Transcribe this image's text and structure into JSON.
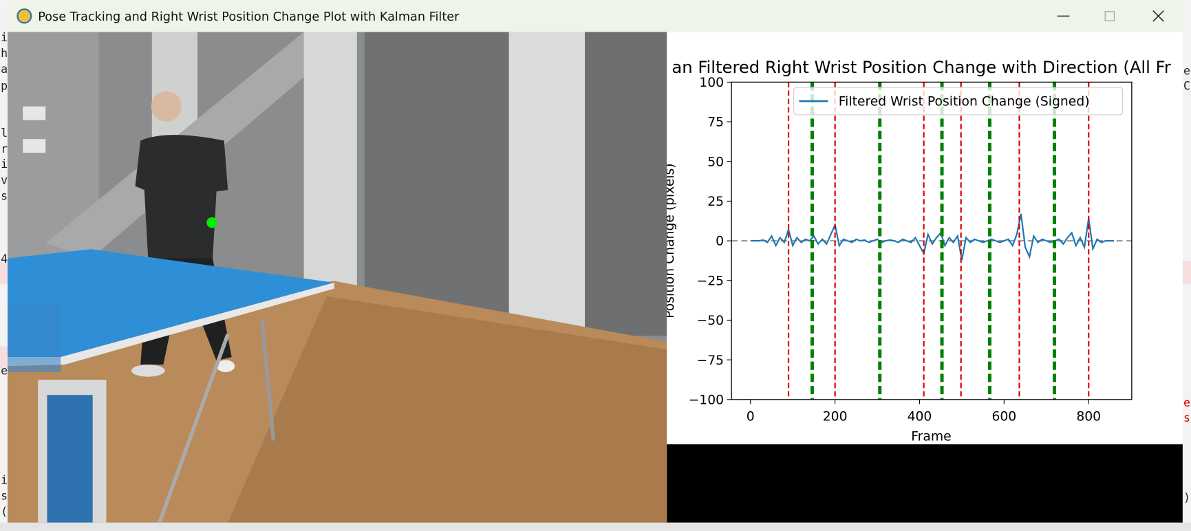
{
  "window": {
    "title": "Pose Tracking and Right Wrist Position Change Plot with Kalman Filter"
  },
  "background_text_left": [
    "i",
    "h",
    "a",
    "p",
    "l",
    "r",
    "i",
    "v",
    "s",
    "4",
    "e",
    "i",
    "s",
    "("
  ],
  "background_text_right": [
    "e",
    "C",
    "e",
    "s",
    ")"
  ],
  "chart_data": {
    "type": "line",
    "title": "an Filtered Right Wrist Position Change with Direction (All Fr",
    "xlabel": "Frame",
    "ylabel": "Position Change (pixels)",
    "xlim": [
      -45,
      902
    ],
    "ylim": [
      -100,
      100
    ],
    "xticks": [
      0,
      200,
      400,
      600,
      800
    ],
    "yticks": [
      {
        "value": -100,
        "label": "−100"
      },
      {
        "value": -75,
        "label": "−75"
      },
      {
        "value": -50,
        "label": "−50"
      },
      {
        "value": -25,
        "label": "−25"
      },
      0,
      25,
      50,
      75,
      100
    ],
    "x": [
      0,
      10,
      20,
      30,
      40,
      50,
      60,
      70,
      80,
      90,
      100,
      110,
      120,
      130,
      140,
      150,
      160,
      170,
      180,
      190,
      200,
      210,
      220,
      230,
      240,
      250,
      260,
      270,
      280,
      290,
      300,
      310,
      320,
      330,
      340,
      350,
      360,
      370,
      380,
      390,
      400,
      410,
      420,
      430,
      440,
      450,
      460,
      470,
      480,
      490,
      500,
      510,
      520,
      530,
      540,
      550,
      560,
      570,
      580,
      590,
      600,
      610,
      620,
      630,
      640,
      650,
      660,
      670,
      680,
      690,
      700,
      710,
      720,
      730,
      740,
      750,
      760,
      770,
      780,
      790,
      800,
      810,
      820,
      830,
      840,
      850,
      860
    ],
    "series": [
      {
        "name": "Filtered Wrist Position Change (Signed)",
        "color": "#1f77b4",
        "values": [
          0,
          0,
          0,
          0.5,
          -1,
          3,
          -3,
          2,
          -1,
          7,
          -3,
          2,
          -1,
          1,
          0,
          3,
          -2,
          1,
          -2,
          4,
          10,
          -3,
          1,
          0,
          -1,
          1,
          0,
          0.5,
          -1,
          0,
          1,
          -1,
          0,
          0.5,
          0,
          -1,
          1,
          0,
          -1,
          2,
          -3,
          -8,
          4,
          -2,
          2,
          5,
          -3,
          2,
          -1,
          3,
          -12,
          2,
          -1,
          1,
          0,
          -1,
          0,
          1,
          0,
          -1,
          0,
          1,
          -3,
          4,
          17,
          -4,
          -10,
          3,
          -1,
          1,
          0,
          -1,
          0,
          1,
          -2,
          2,
          5,
          -3,
          2,
          -4,
          14,
          -5,
          1,
          -1,
          0,
          0,
          0
        ]
      }
    ],
    "axhline": {
      "y": 0,
      "color": "gray"
    },
    "vlines": [
      {
        "color": "red",
        "x": [
          90,
          200,
          410,
          498,
          636,
          800
        ]
      },
      {
        "color": "green",
        "x": [
          146,
          306,
          453,
          566,
          719
        ]
      }
    ],
    "legend": "upper right",
    "grid": false
  }
}
